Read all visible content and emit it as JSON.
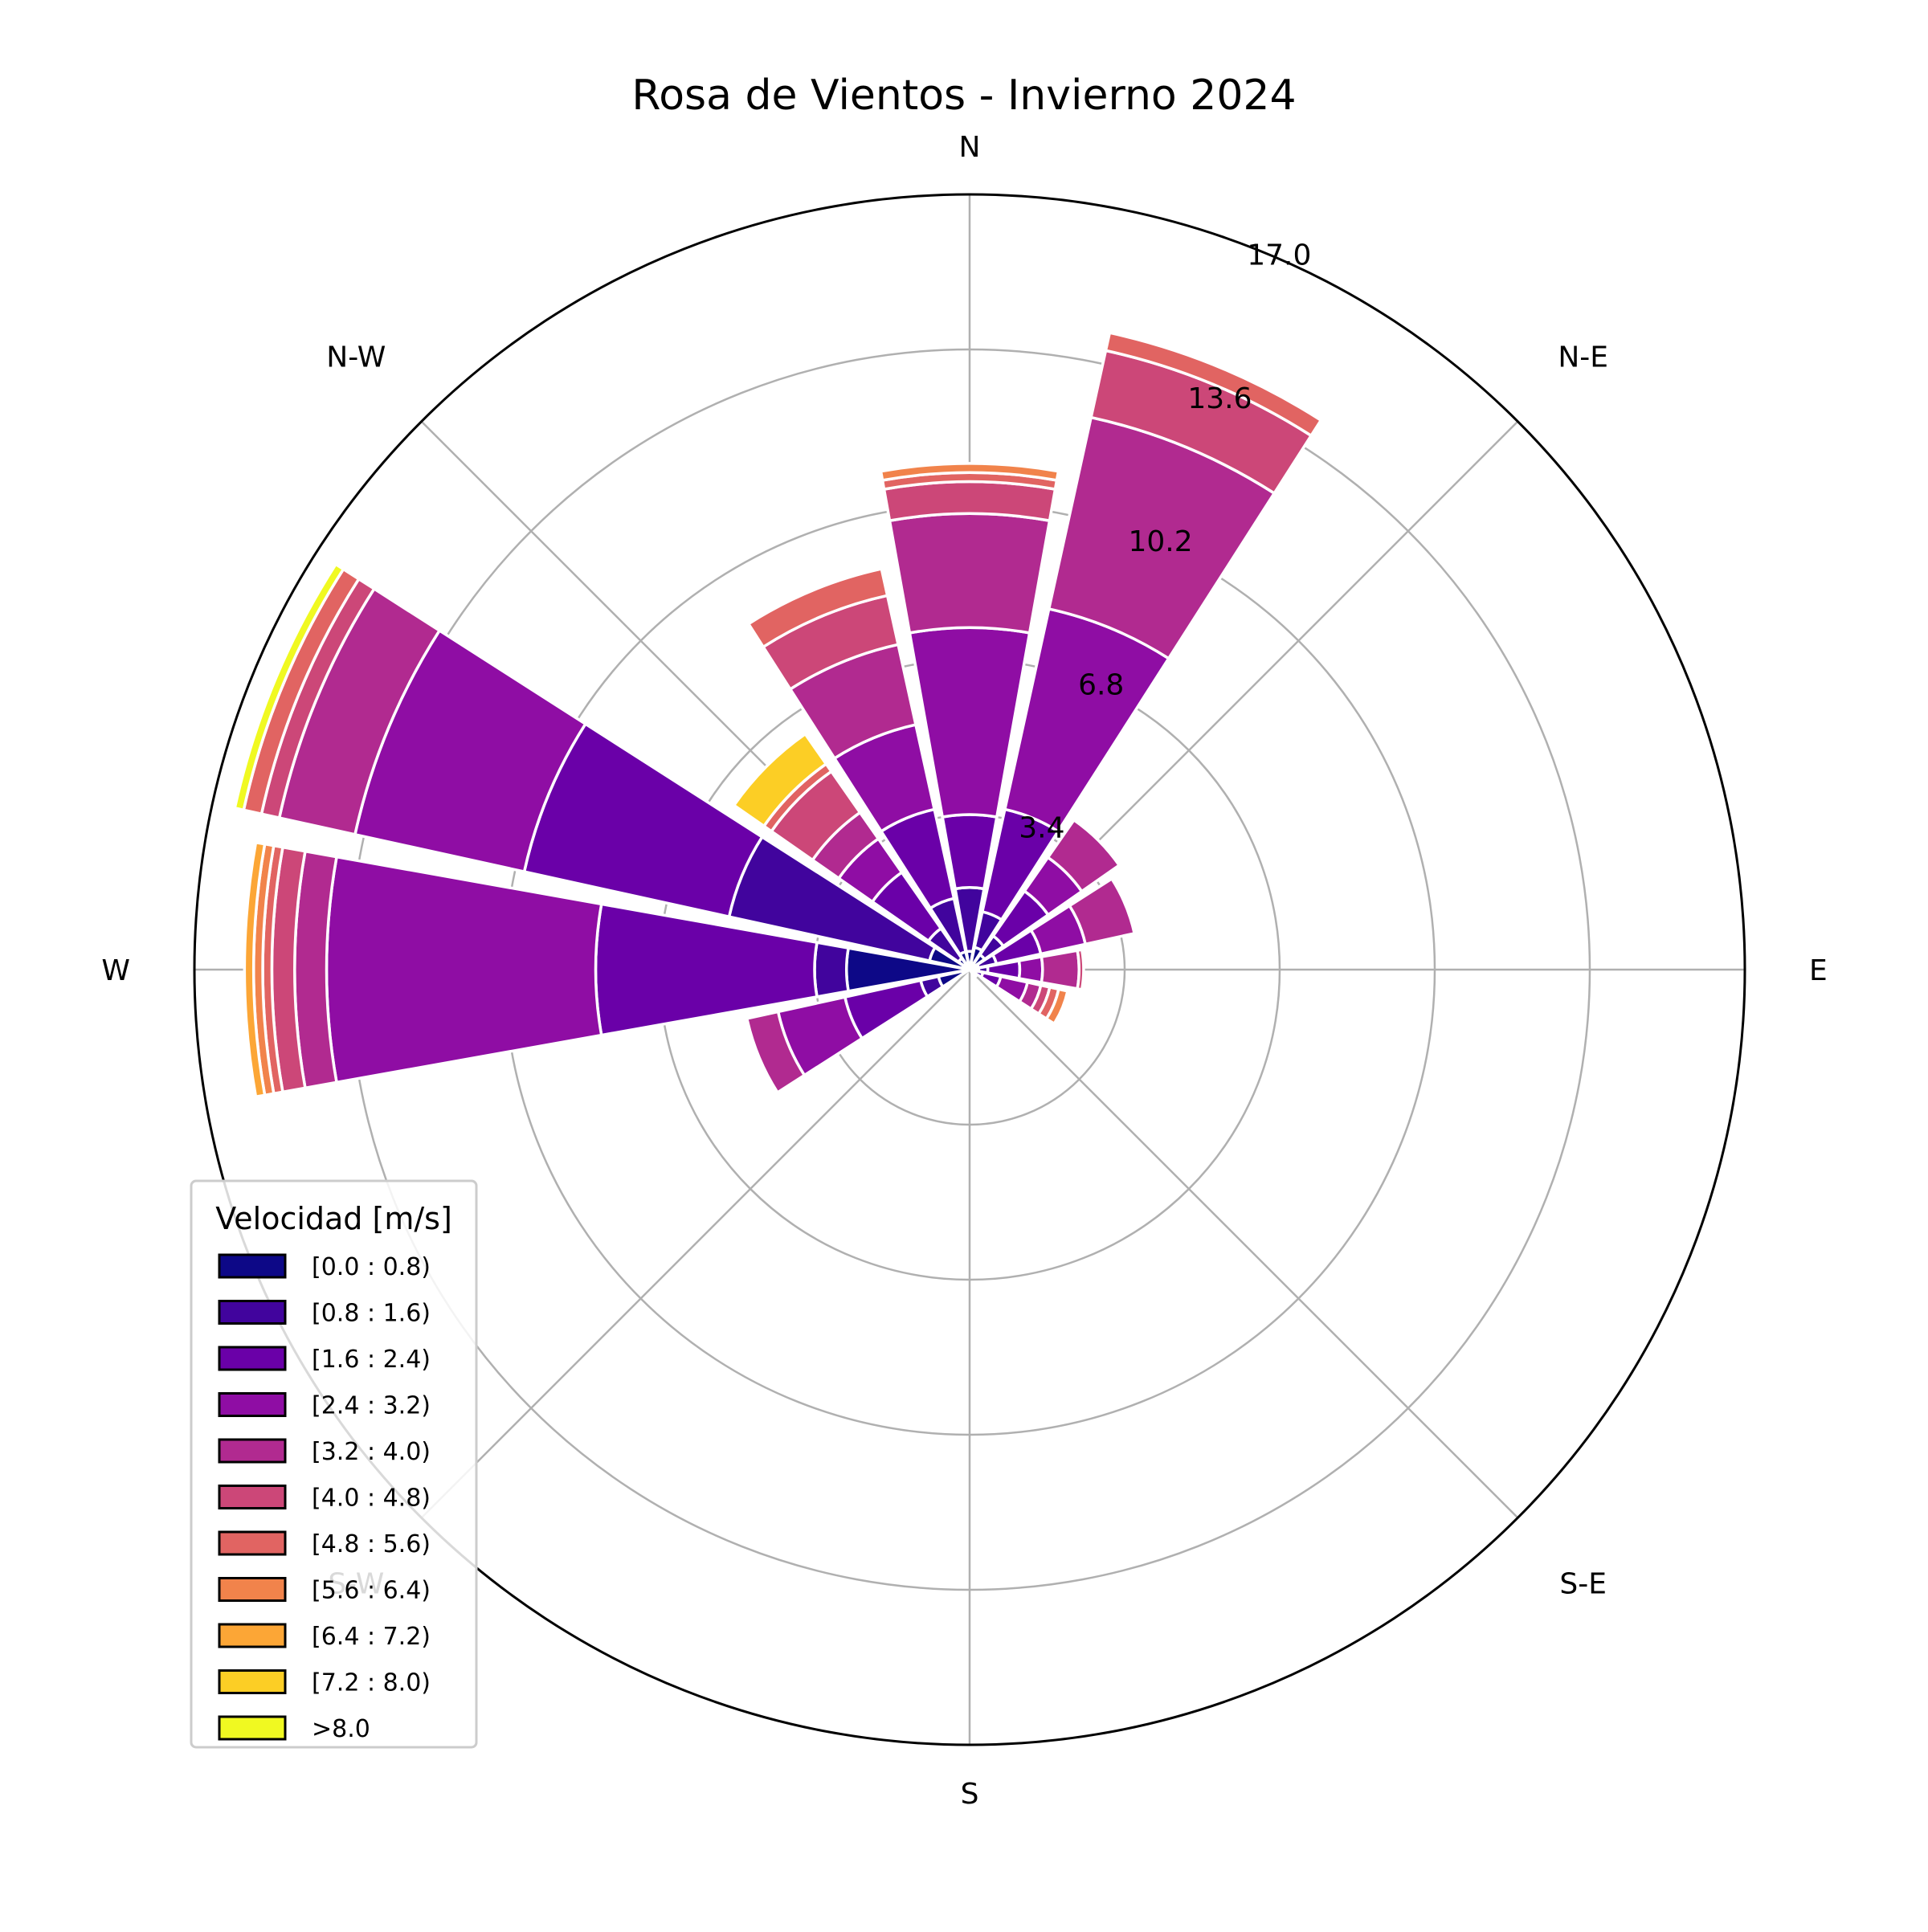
{
  "chart_data": {
    "type": "windrose",
    "title": "Rosa de Vientos - Invierno 2024",
    "direction_labels": [
      "N",
      "N-E",
      "E",
      "S-E",
      "S",
      "S-W",
      "W",
      "N-W"
    ],
    "r_ticks": [
      "3.4",
      "6.8",
      "10.2",
      "13.6",
      "17.0"
    ],
    "r_tick_values": [
      3.4,
      6.8,
      10.2,
      13.6,
      17.0
    ],
    "r_max": 17.0,
    "legend": {
      "title": "Velocidad [m/s]",
      "placement": "lower-left",
      "entries": [
        "[0.0 : 0.8)",
        "[0.8 : 1.6)",
        "[1.6 : 2.4)",
        "[2.4 : 3.2)",
        "[3.2 : 4.0)",
        "[4.0 : 4.8)",
        "[4.8 : 5.6)",
        "[5.6 : 6.4)",
        "[6.4 : 7.2)",
        "[7.2 : 8.0)",
        ">8.0"
      ]
    },
    "bin_colors": [
      "#0d0887",
      "#41049d",
      "#6a00a8",
      "#8f0da4",
      "#b12a90",
      "#cc4778",
      "#e16462",
      "#f1834b",
      "#fca636",
      "#fcce25",
      "#f0f921"
    ],
    "directions_deg": [
      0,
      22.5,
      45,
      67.5,
      90,
      112.5,
      135,
      157.5,
      180,
      202.5,
      225,
      247.5,
      270,
      292.5,
      315,
      337.5
    ],
    "series_cumulative": [
      [
        0.4,
        1.8,
        3.4,
        7.5,
        10.0,
        10.7,
        10.9,
        11.1,
        11.1,
        11.1,
        11.1
      ],
      [
        0.5,
        1.3,
        3.6,
        8.1,
        12.4,
        13.9,
        14.3,
        14.3,
        14.3,
        14.3,
        14.3
      ],
      [
        0.4,
        0.9,
        2.1,
        3.0,
        4.0,
        4.0,
        4.0,
        4.0,
        4.0,
        4.0,
        4.0
      ],
      [
        0.2,
        0.6,
        1.6,
        2.6,
        3.7,
        3.7,
        3.7,
        3.7,
        3.7,
        3.7,
        3.7
      ],
      [
        0.2,
        0.4,
        1.1,
        1.6,
        2.4,
        2.5,
        2.5,
        2.5,
        2.5,
        2.5,
        2.5
      ],
      [
        0.1,
        0.3,
        0.7,
        1.3,
        1.6,
        1.8,
        2.0,
        2.2,
        2.2,
        2.2,
        2.2
      ],
      [
        0.2,
        0.2,
        0.2,
        0.2,
        0.2,
        0.2,
        0.2,
        0.2,
        0.2,
        0.2,
        0.2
      ],
      [
        0.0,
        0.0,
        0.0,
        0.0,
        0.0,
        0.0,
        0.0,
        0.0,
        0.0,
        0.0,
        0.0
      ],
      [
        0.0,
        0.0,
        0.0,
        0.0,
        0.0,
        0.0,
        0.0,
        0.0,
        0.0,
        0.0,
        0.0
      ],
      [
        0.0,
        0.0,
        0.0,
        0.0,
        0.0,
        0.0,
        0.0,
        0.0,
        0.0,
        0.0,
        0.0
      ],
      [
        0.0,
        0.0,
        0.0,
        0.0,
        0.0,
        0.0,
        0.0,
        0.0,
        0.0,
        0.0,
        0.0
      ],
      [
        0.7,
        1.1,
        2.8,
        4.3,
        5.0,
        5.0,
        5.0,
        5.0,
        5.0,
        5.0,
        5.0
      ],
      [
        2.7,
        3.4,
        8.2,
        14.1,
        14.8,
        15.3,
        15.5,
        15.7,
        15.9,
        15.9,
        15.9
      ],
      [
        0.9,
        5.4,
        10.0,
        13.8,
        15.5,
        15.9,
        16.3,
        16.3,
        16.3,
        16.3,
        16.5
      ],
      [
        0.3,
        1.1,
        2.6,
        3.5,
        4.2,
        5.3,
        5.5,
        5.5,
        5.5,
        6.3,
        6.3
      ],
      [
        0.4,
        1.6,
        3.6,
        5.5,
        7.3,
        8.4,
        9.0,
        9.0,
        9.0,
        9.0,
        9.0
      ]
    ]
  }
}
